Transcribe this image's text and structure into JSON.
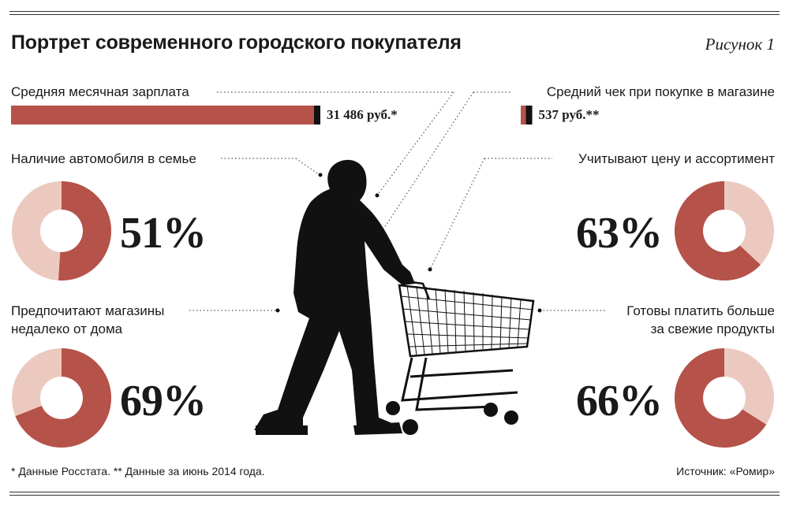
{
  "title": "Портрет современного городского покупателя",
  "figure_label": "Рисунок 1",
  "colors": {
    "accent": "#b5524a",
    "light": "#ecc9bf",
    "ink": "#111111"
  },
  "chart_data": [
    {
      "type": "bar",
      "label": "Средняя месячная зарплата",
      "value": 31486,
      "value_label": "31 486 руб.*"
    },
    {
      "type": "bar",
      "label": "Средний чек при покупке в магазине",
      "value": 537,
      "value_label": "537 руб.**"
    },
    {
      "type": "pie",
      "label": "Наличие автомобиля в семье",
      "value": 51,
      "value_label": "51%"
    },
    {
      "type": "pie",
      "label_lines": [
        "Предпочитают магазины",
        "недалеко от дома"
      ],
      "value": 69,
      "value_label": "69%"
    },
    {
      "type": "pie",
      "label": "Учитывают цену и ассортимент",
      "value": 63,
      "value_label": "63%"
    },
    {
      "type": "pie",
      "label_lines": [
        "Готовы платить больше",
        "за свежие продукты"
      ],
      "value": 66,
      "value_label": "66%"
    }
  ],
  "footnote": "* Данные Росстата. ** Данные за июнь 2014 года.",
  "source": "Источник: «Ромир»"
}
